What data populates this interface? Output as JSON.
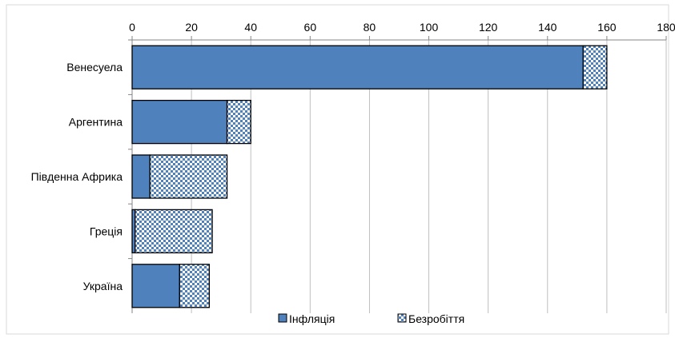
{
  "chart_data": {
    "type": "bar",
    "orientation": "horizontal",
    "stacked": true,
    "categories": [
      "Венесуела",
      "Аргентина",
      "Південна Африка",
      "Греція",
      "Україна"
    ],
    "series": [
      {
        "name": "Інфляція",
        "values": [
          152,
          32,
          6,
          1,
          16
        ],
        "color": "#4f81bd",
        "pattern": "solid"
      },
      {
        "name": "Безробіття",
        "values": [
          8,
          8,
          26,
          26,
          10
        ],
        "color": "#4f81bd",
        "pattern": "checkered"
      }
    ],
    "xlim": [
      0,
      180
    ],
    "x_ticks": [
      0,
      20,
      40,
      60,
      80,
      100,
      120,
      140,
      160,
      180
    ],
    "x_tick_labels": [
      "0",
      "20",
      "40",
      "60",
      "80",
      "100",
      "120",
      "140",
      "160",
      "180"
    ],
    "grid": true,
    "x_axis_position": "top",
    "legend_position": "bottom"
  }
}
